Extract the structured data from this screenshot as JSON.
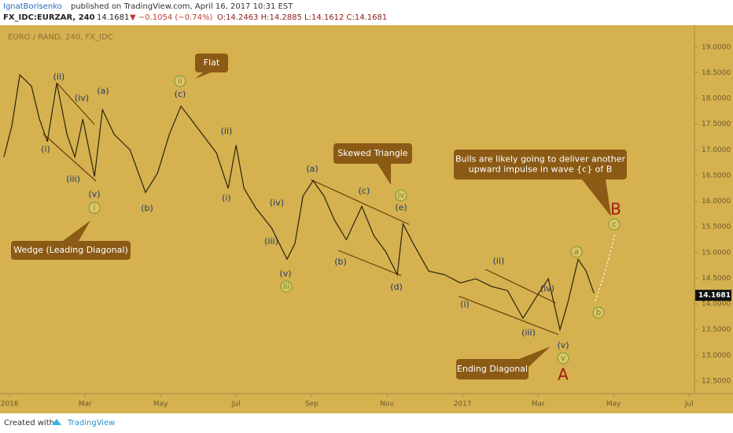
{
  "header": {
    "author": "IgnatBorisenko",
    "published": "published on TradingView.com, April 16, 2017 10:31 EST",
    "symbol": "FX_IDC:EURZAR, 240",
    "price": "14.1681",
    "change": "▼ −0.1054 (−0.74%)",
    "ohlc": "O:14.2463 H:14.2885 L:14.1612 C:14.1681"
  },
  "footer": {
    "created": "Created with",
    "brand": "TradingView"
  },
  "chart_data": {
    "type": "line",
    "title": "EURO / RAND, 240, FX_IDC",
    "color": "#2b2410",
    "x": [
      -0.15,
      0.06,
      0.27,
      0.58,
      0.79,
      1.0,
      1.25,
      1.52,
      1.73,
      1.94,
      2.25,
      2.46,
      2.77,
      3.19,
      3.6,
      3.92,
      4.23,
      4.54,
      4.85,
      5.17,
      5.48,
      5.79,
      6.0,
      6.21,
      6.52,
      6.94,
      7.35,
      7.56,
      7.77,
      8.04,
      8.33,
      8.6,
      8.92,
      9.33,
      9.65,
      9.96,
      10.27,
      10.42,
      10.69,
      11.1,
      11.52,
      11.94,
      12.35,
      12.77,
      13.19,
      13.6,
      13.92,
      14.27,
      14.58,
      14.79,
      15.06,
      15.27,
      15.48
    ],
    "values": [
      16.86,
      17.47,
      18.46,
      18.24,
      17.6,
      17.16,
      18.3,
      17.3,
      16.86,
      17.6,
      16.48,
      17.78,
      17.3,
      17.0,
      16.17,
      16.55,
      17.3,
      17.85,
      17.55,
      17.24,
      16.94,
      16.25,
      17.09,
      16.25,
      15.87,
      15.48,
      14.87,
      15.18,
      16.1,
      16.4,
      16.1,
      15.64,
      15.25,
      15.9,
      15.33,
      15.02,
      14.57,
      15.56,
      15.18,
      14.64,
      14.57,
      14.41,
      14.49,
      14.34,
      14.26,
      13.72,
      14.1,
      14.49,
      13.5,
      14.03,
      14.87,
      14.64,
      14.21
    ],
    "xlim": [
      -0.15,
      18.1
    ],
    "xticks": [
      {
        "value": 0,
        "label": "2016"
      },
      {
        "value": 2,
        "label": "Mar"
      },
      {
        "value": 4,
        "label": "May"
      },
      {
        "value": 6,
        "label": "Jul"
      },
      {
        "value": 8,
        "label": "Sep"
      },
      {
        "value": 10,
        "label": "Nov"
      },
      {
        "value": 12,
        "label": "2017"
      },
      {
        "value": 14,
        "label": "Mar"
      },
      {
        "value": 16,
        "label": "May"
      },
      {
        "value": 18,
        "label": "Jul"
      }
    ],
    "ylim": [
      12.3,
      19.35
    ],
    "yticks": [
      {
        "value": 12.5,
        "label": "12.5000"
      },
      {
        "value": 13,
        "label": "13.0000"
      },
      {
        "value": 13.5,
        "label": "13.5000"
      },
      {
        "value": 14,
        "label": "14.0000"
      },
      {
        "value": 14.5,
        "label": "14.5000"
      },
      {
        "value": 15,
        "label": "15.0000"
      },
      {
        "value": 15.5,
        "label": "15.5000"
      },
      {
        "value": 16,
        "label": "16.0000"
      },
      {
        "value": 16.5,
        "label": "16.5000"
      },
      {
        "value": 17,
        "label": "17.0000"
      },
      {
        "value": 17.5,
        "label": "17.5000"
      },
      {
        "value": 18,
        "label": "18.0000"
      },
      {
        "value": 18.5,
        "label": "18.5000"
      },
      {
        "value": 19,
        "label": "19.0000"
      }
    ],
    "last_price": 14.1681,
    "wave_labels": [
      "(ii)",
      "(iv)",
      "(a)",
      "(i)",
      "(iii)",
      "(v)",
      "(b)",
      "(c)",
      "(ii)",
      "(i)",
      "(iv)",
      "(iii)",
      "(v)",
      "(a)",
      "(c)",
      "(e)",
      "(b)",
      "(d)",
      "(ii)",
      "(iv)",
      "(i)",
      "(iii)",
      "(v)"
    ],
    "circled_labels": [
      "ii",
      "i",
      "iii",
      "iv",
      "a",
      "b",
      "c",
      "v"
    ],
    "big_labels": [
      "B",
      "A"
    ],
    "callouts": [
      [
        "Flat"
      ],
      [
        "Wedge (Leading Diagonal)"
      ],
      [
        "Skewed Triangle"
      ],
      [
        "Bulls are likely going to deliver another",
        "upward impulse in wave {c} of B"
      ],
      [
        "Ending Diagonal"
      ]
    ]
  }
}
